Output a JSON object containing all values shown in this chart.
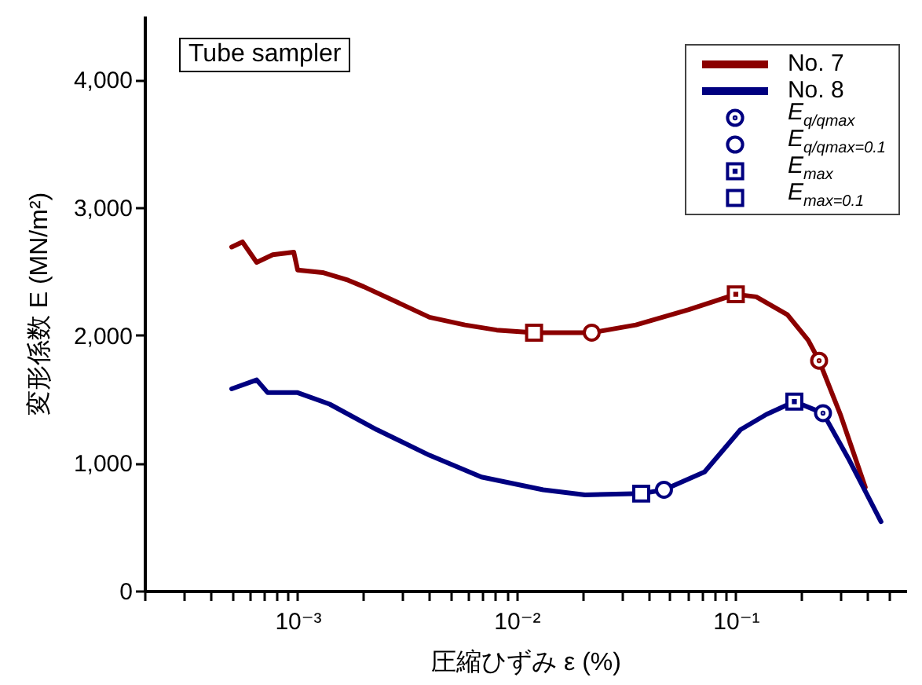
{
  "chart_data": {
    "type": "line",
    "xlabel": "圧縮ひずみ ε (%)",
    "ylabel": "変形係数  E (MN/m²)",
    "annotations": [
      "Tube sampler"
    ],
    "log": "x",
    "xlim": [
      0.0002,
      0.6
    ],
    "ylim": [
      0,
      4500
    ],
    "xticks": [
      {
        "value": 0.0002,
        "label": null
      },
      {
        "value": 0.0003,
        "label": null
      },
      {
        "value": 0.0004,
        "label": null
      },
      {
        "value": 0.0005,
        "label": null
      },
      {
        "value": 0.0006,
        "label": null
      },
      {
        "value": 0.0007,
        "label": null
      },
      {
        "value": 0.0008,
        "label": null
      },
      {
        "value": 0.0009,
        "label": null
      },
      {
        "value": 0.001,
        "label": "10⁻³"
      },
      {
        "value": 0.002,
        "label": null
      },
      {
        "value": 0.003,
        "label": null
      },
      {
        "value": 0.004,
        "label": null
      },
      {
        "value": 0.005,
        "label": null
      },
      {
        "value": 0.006,
        "label": null
      },
      {
        "value": 0.007,
        "label": null
      },
      {
        "value": 0.008,
        "label": null
      },
      {
        "value": 0.009,
        "label": null
      },
      {
        "value": 0.01,
        "label": "10⁻²"
      },
      {
        "value": 0.02,
        "label": null
      },
      {
        "value": 0.03,
        "label": null
      },
      {
        "value": 0.04,
        "label": null
      },
      {
        "value": 0.05,
        "label": null
      },
      {
        "value": 0.06,
        "label": null
      },
      {
        "value": 0.07,
        "label": null
      },
      {
        "value": 0.08,
        "label": null
      },
      {
        "value": 0.09,
        "label": null
      },
      {
        "value": 0.1,
        "label": "10⁻¹"
      },
      {
        "value": 0.2,
        "label": null
      },
      {
        "value": 0.3,
        "label": null
      },
      {
        "value": 0.4,
        "label": null
      },
      {
        "value": 0.5,
        "label": null
      }
    ],
    "yticks": [
      {
        "value": 0,
        "label": "0"
      },
      {
        "value": 1000,
        "label": "1,000"
      },
      {
        "value": 2000,
        "label": "2,000"
      },
      {
        "value": 3000,
        "label": "3,000"
      },
      {
        "value": 4000,
        "label": "4,000"
      }
    ],
    "grid": false,
    "legend": "top right",
    "line_style": "solid",
    "series": [
      {
        "name": "No. 7",
        "color": "#8b0000",
        "x": [
          0.0005,
          0.00056,
          0.00065,
          0.00077,
          0.00096,
          0.001,
          0.0013,
          0.0017,
          0.002,
          0.003,
          0.004,
          0.0058,
          0.0081,
          0.012,
          0.0205,
          0.022,
          0.035,
          0.061,
          0.1,
          0.124,
          0.172,
          0.214,
          0.24,
          0.3,
          0.39
        ],
        "values": [
          2690,
          2730,
          2570,
          2630,
          2650,
          2510,
          2490,
          2430,
          2380,
          2240,
          2140,
          2080,
          2040,
          2020,
          2020,
          2020,
          2080,
          2200,
          2320,
          2300,
          2160,
          1960,
          1800,
          1380,
          810
        ]
      },
      {
        "name": "No. 8",
        "color": "#000080",
        "x": [
          0.0005,
          0.00065,
          0.00073,
          0.001,
          0.0014,
          0.0023,
          0.004,
          0.0069,
          0.0132,
          0.0205,
          0.037,
          0.047,
          0.072,
          0.105,
          0.138,
          0.185,
          0.25,
          0.33,
          0.46
        ],
        "values": [
          1580,
          1650,
          1550,
          1550,
          1460,
          1260,
          1060,
          890,
          790,
          750,
          760,
          790,
          930,
          1260,
          1380,
          1480,
          1390,
          1020,
          540
        ]
      },
      {
        "name": "E$_{q/qmax}$",
        "type": "scatter",
        "marker": "circle",
        "x": [
          0.24,
          0.25
        ],
        "values": [
          1800,
          1390
        ],
        "colors": [
          "#8b0000",
          "#000080"
        ]
      },
      {
        "name": "E$_{q/qmax=0.1}$",
        "type": "scatter",
        "marker": "circle",
        "x": [
          0.022,
          0.047
        ],
        "values": [
          2020,
          790
        ],
        "colors": [
          "#8b0000",
          "#000080"
        ]
      },
      {
        "name": "E$_{max}$",
        "type": "scatter",
        "marker": "square",
        "x": [
          0.1,
          0.185
        ],
        "values": [
          2320,
          1480
        ],
        "colors": [
          "#8b0000",
          "#000080"
        ]
      },
      {
        "name": "E$_{max=0.1}$",
        "type": "scatter",
        "marker": "square",
        "x": [
          0.012,
          0.037
        ],
        "values": [
          2020,
          760
        ],
        "colors": [
          "#8b0000",
          "#000080"
        ]
      }
    ]
  }
}
